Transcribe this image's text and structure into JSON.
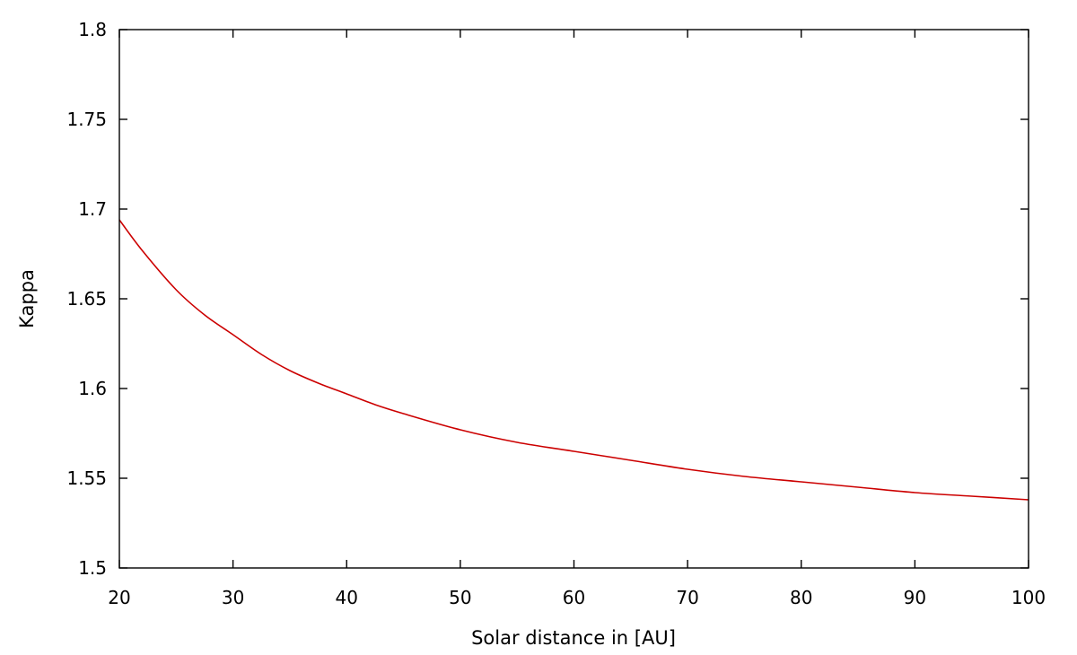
{
  "chart_data": {
    "type": "line",
    "title": "",
    "xlabel": "Solar distance in [AU]",
    "ylabel": "Kappa",
    "xlim": [
      20,
      100
    ],
    "ylim": [
      1.5,
      1.8
    ],
    "x_ticks": [
      20,
      30,
      40,
      50,
      60,
      70,
      80,
      90,
      100
    ],
    "x_tick_labels": [
      "20",
      "30",
      "40",
      "50",
      "60",
      "70",
      "80",
      "90",
      "100"
    ],
    "y_ticks": [
      1.5,
      1.55,
      1.6,
      1.65,
      1.7,
      1.75,
      1.8
    ],
    "y_tick_labels": [
      "1.5",
      "1.55",
      "1.6",
      "1.65",
      "1.7",
      "1.75",
      "1.8"
    ],
    "grid": false,
    "legend": "none",
    "series": [
      {
        "color": "#cc0000",
        "x": [
          20,
          22,
          25,
          27.5,
          30,
          32.5,
          35,
          37.5,
          40,
          42.5,
          45,
          50,
          55,
          60,
          65,
          70,
          75,
          80,
          85,
          90,
          95,
          100
        ],
        "y": [
          1.694,
          1.677,
          1.655,
          1.641,
          1.63,
          1.619,
          1.61,
          1.603,
          1.597,
          1.591,
          1.586,
          1.577,
          1.57,
          1.565,
          1.56,
          1.555,
          1.551,
          1.548,
          1.545,
          1.542,
          1.54,
          1.538
        ]
      }
    ]
  }
}
